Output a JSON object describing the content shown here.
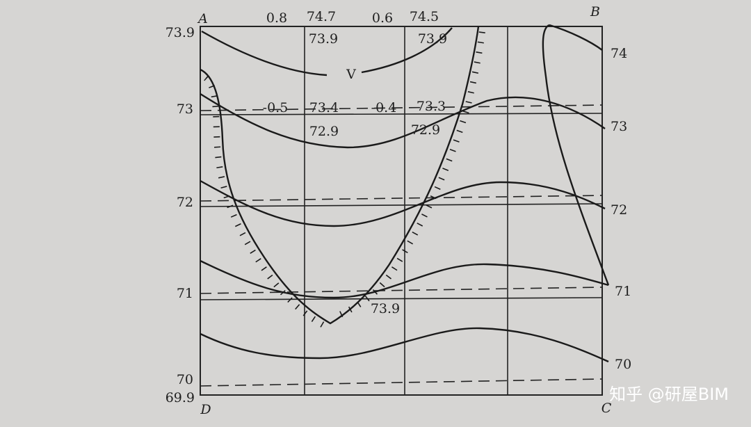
{
  "corners": {
    "a": "A",
    "b": "B",
    "c": "C",
    "d": "D"
  },
  "left_labels": [
    "73.9",
    "73",
    "72",
    "71",
    "70",
    "69.9"
  ],
  "right_labels": [
    "74",
    "73",
    "72",
    "71",
    "70"
  ],
  "top_labels": [
    "0.8",
    "74.7",
    "0.6",
    "74.5"
  ],
  "grid_labels": [
    "73.9",
    "73.9",
    "V",
    "-0.5",
    "73.4",
    "-0.4",
    "73.3",
    "72.9",
    "72.9",
    "73.9"
  ],
  "watermark": "知乎 @研屋BIM"
}
